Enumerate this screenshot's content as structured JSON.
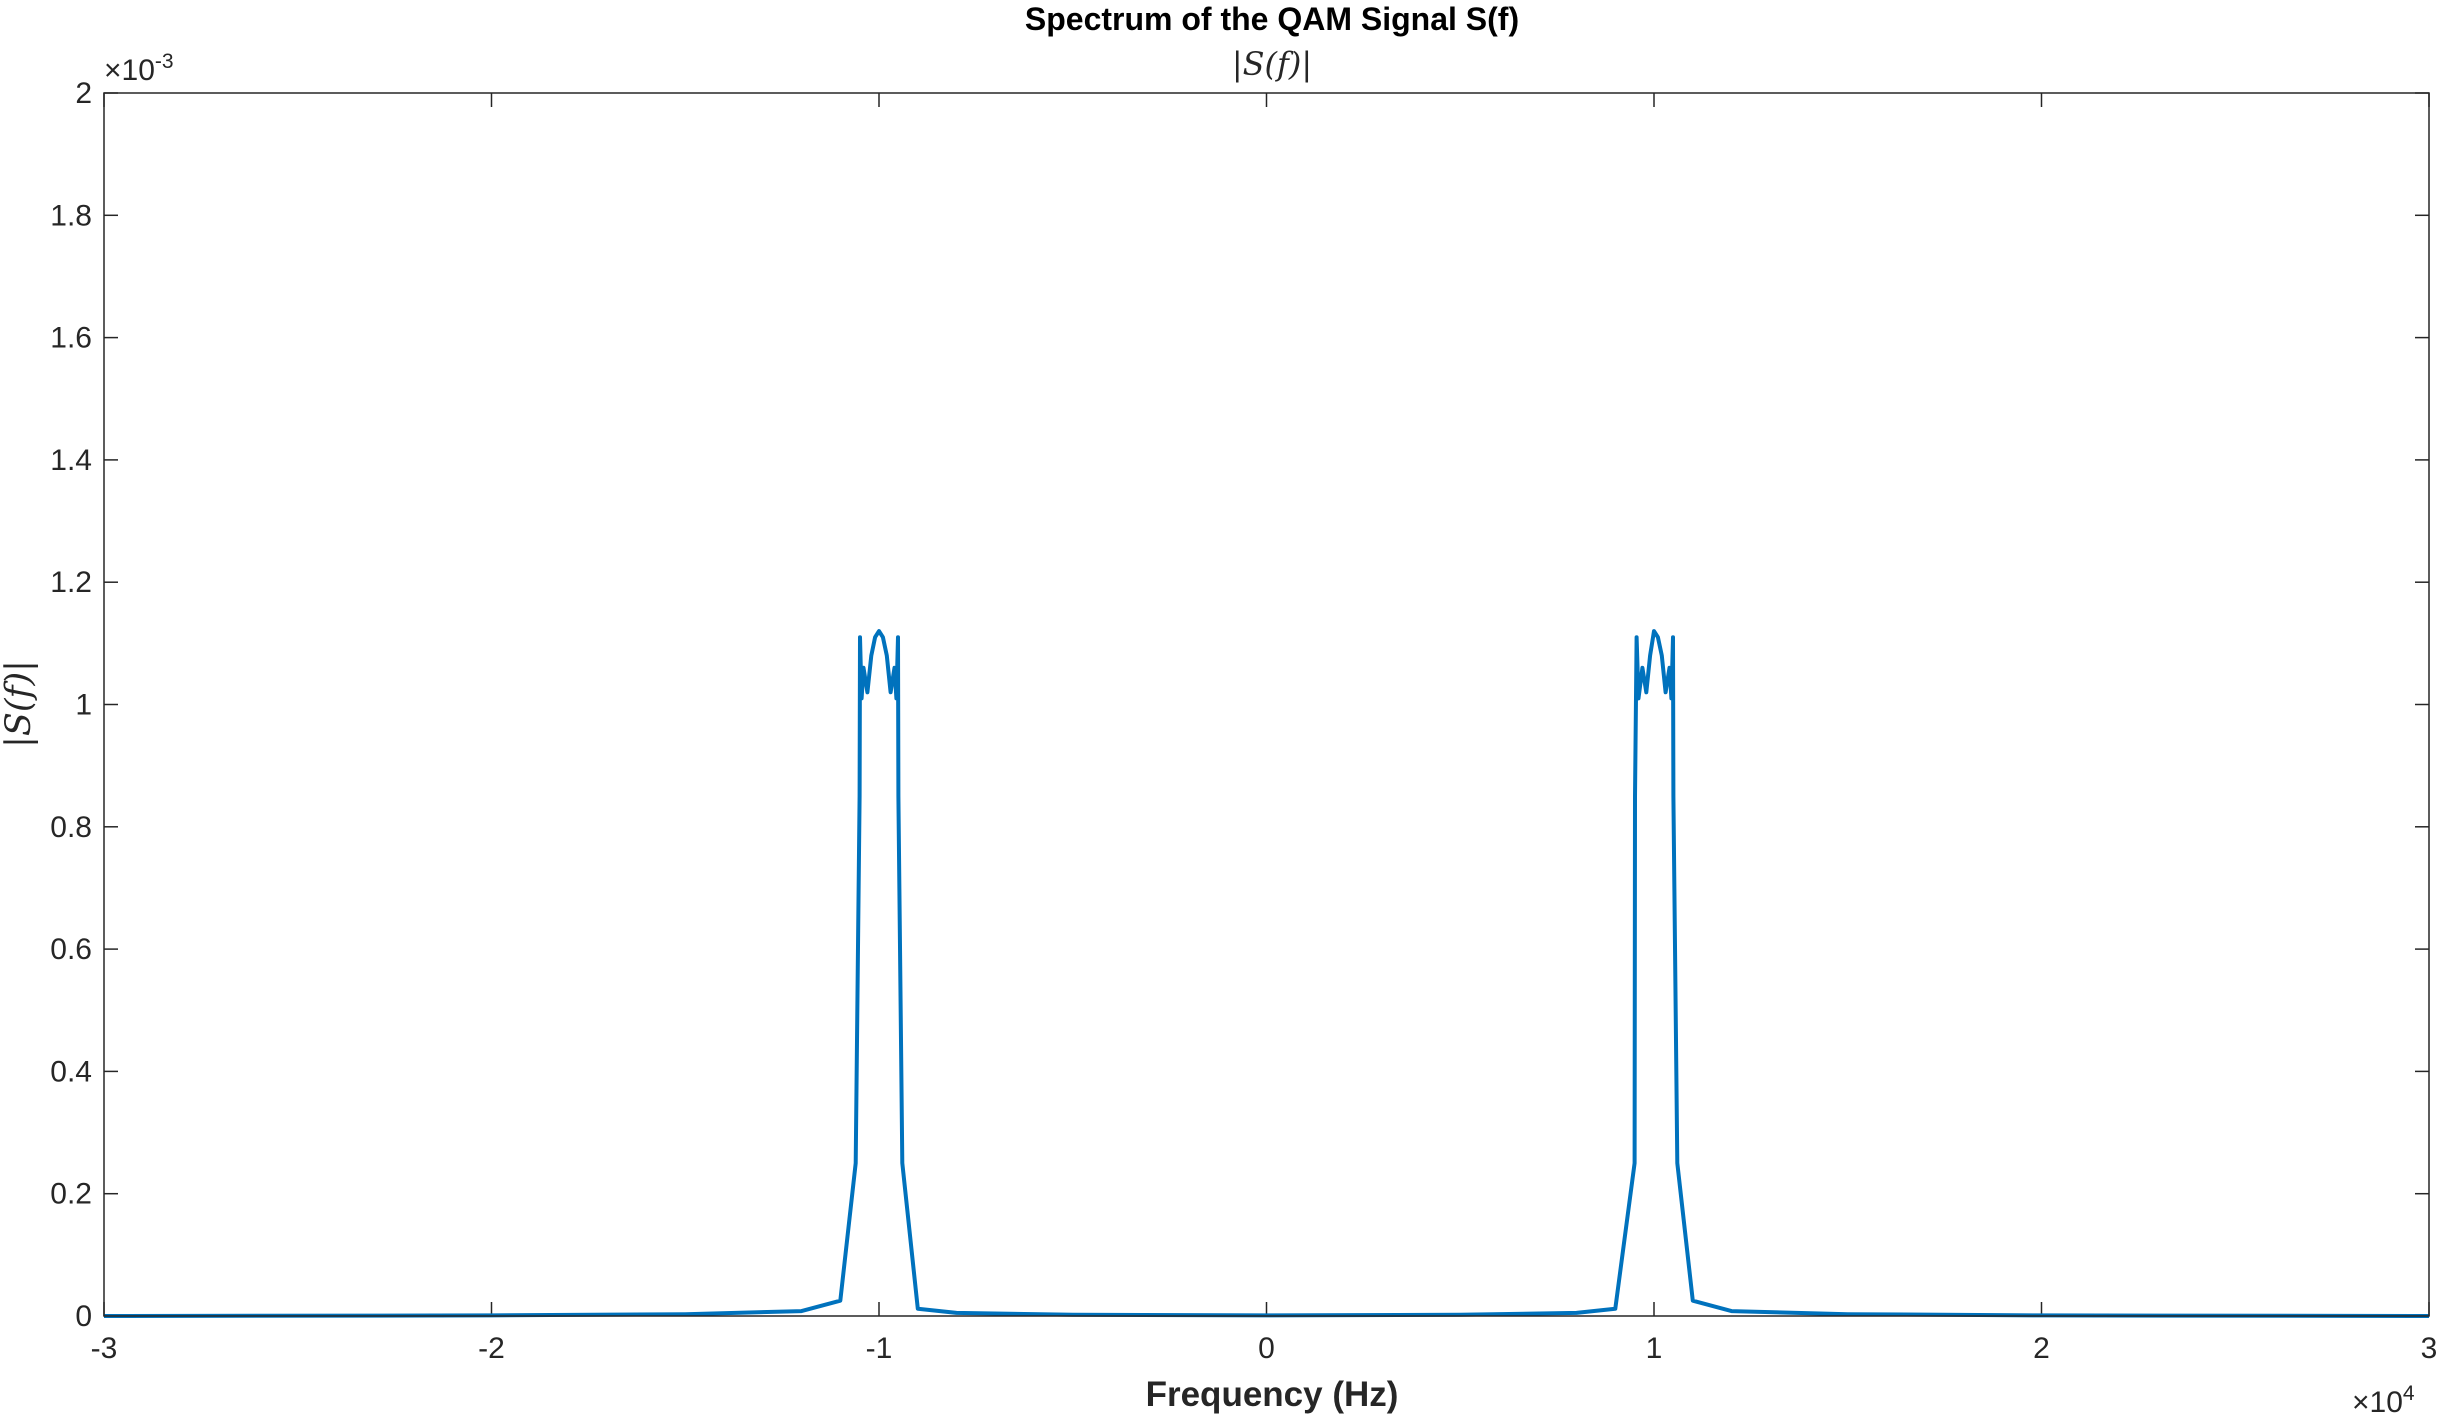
{
  "chart_data": {
    "type": "line",
    "title": "Spectrum of the QAM Signal S(f)",
    "subtitle": "|S(f)|",
    "xlabel": "Frequency (Hz)",
    "ylabel": "|S(f)|",
    "xlim": [
      -30000,
      30000
    ],
    "ylim": [
      0,
      0.002
    ],
    "x_exponent_label": "×10",
    "x_exponent_power": "4",
    "y_exponent_label": "×10",
    "y_exponent_power": "-3",
    "x_ticks": [
      -30000,
      -20000,
      -10000,
      0,
      10000,
      20000,
      30000
    ],
    "x_tick_labels": [
      "-3",
      "-2",
      "-1",
      "0",
      "1",
      "2",
      "3"
    ],
    "y_ticks": [
      0,
      0.0002,
      0.0004,
      0.0006,
      0.0008,
      0.001,
      0.0012,
      0.0014,
      0.0016,
      0.0018,
      0.002
    ],
    "y_tick_labels": [
      "0",
      "0.2",
      "0.4",
      "0.6",
      "0.8",
      "1",
      "1.2",
      "1.4",
      "1.6",
      "1.8",
      "2"
    ],
    "grid": false,
    "line_color": "#0072BD",
    "series": [
      {
        "x": [
          -30000,
          -20000,
          -15000,
          -12000,
          -11000,
          -10600,
          -10500,
          -10490,
          -10450,
          -10400,
          -10300,
          -10200,
          -10100,
          -10000,
          -9900,
          -9800,
          -9700,
          -9600,
          -9550,
          -9510,
          -9500,
          -9400,
          -9000,
          -8000,
          -5000,
          0,
          5000,
          8000,
          9000,
          9500,
          9510,
          9550,
          9600,
          9700,
          9800,
          9900,
          10000,
          10100,
          10200,
          10300,
          10400,
          10450,
          10490,
          10500,
          10600,
          11000,
          12000,
          15000,
          20000,
          30000
        ],
        "y": [
          0,
          1e-06,
          3e-06,
          8e-06,
          2.5e-05,
          0.00025,
          0.00085,
          0.00111,
          0.00101,
          0.00106,
          0.00102,
          0.00108,
          0.00111,
          0.00112,
          0.00111,
          0.00108,
          0.00102,
          0.00106,
          0.00101,
          0.00111,
          0.00085,
          0.00025,
          1.2e-05,
          5e-06,
          2e-06,
          1e-06,
          2e-06,
          5e-06,
          1.2e-05,
          0.00025,
          0.00085,
          0.00111,
          0.00101,
          0.00106,
          0.00102,
          0.00108,
          0.00112,
          0.00111,
          0.00108,
          0.00102,
          0.00106,
          0.00101,
          0.00111,
          0.00085,
          0.00025,
          2.5e-05,
          8e-06,
          3e-06,
          1e-06,
          0
        ]
      }
    ]
  }
}
